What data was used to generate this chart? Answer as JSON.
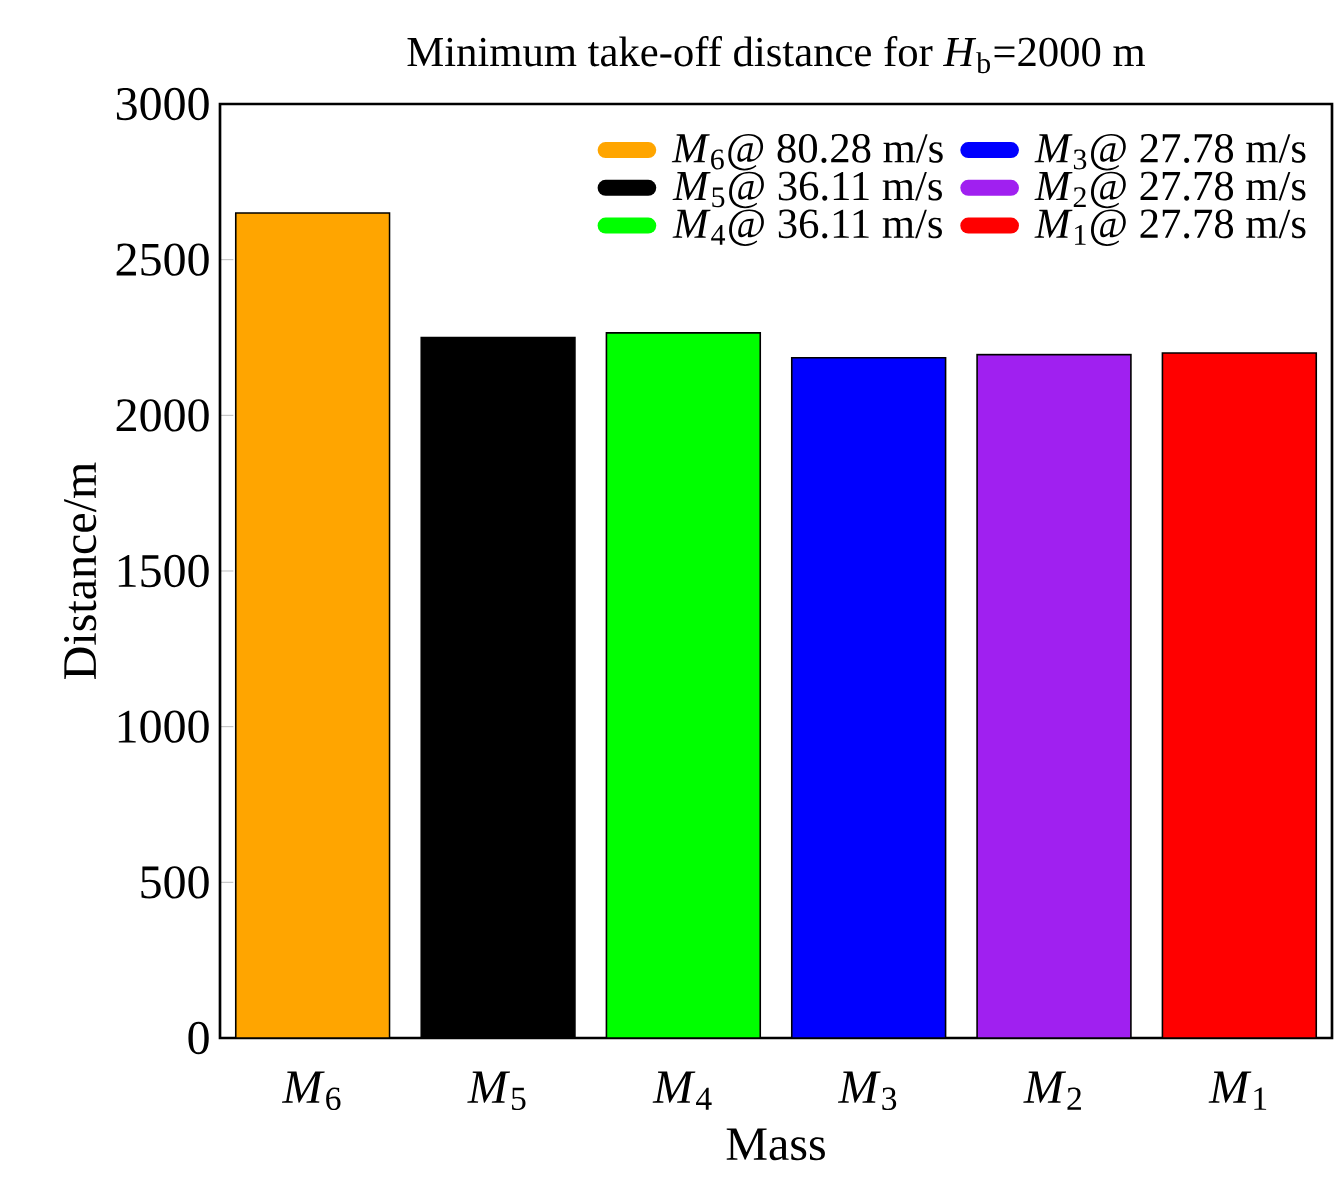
{
  "chart_data": {
    "type": "bar",
    "title": "Minimum take-off distance for *H*$_{b}$=2000 m",
    "xlabel": "Mass",
    "ylabel": "Distance/m",
    "categories": [
      "*M*$_{6}$",
      "*M*$_{5}$",
      "*M*$_{4}$",
      "*M*$_{3}$",
      "*M*$_{2}$",
      "*M*$_{1}$"
    ],
    "series": [
      {
        "name": "*M*$_{6}$@ 80.28 m/s",
        "color": "#ffa500",
        "values": [
          2650,
          null,
          null,
          null,
          null,
          null
        ]
      },
      {
        "name": "*M*$_{5}$@ 36.11 m/s",
        "color": "#000000",
        "values": [
          null,
          2250,
          null,
          null,
          null,
          null
        ]
      },
      {
        "name": "*M*$_{4}$@ 36.11 m/s",
        "color": "#00ff00",
        "values": [
          null,
          null,
          2265,
          null,
          null,
          null
        ]
      },
      {
        "name": "*M*$_{3}$@ 27.78 m/s",
        "color": "#0000ff",
        "values": [
          null,
          null,
          null,
          2185,
          null,
          null
        ]
      },
      {
        "name": "*M*$_{2}$@ 27.78 m/s",
        "color": "#a020f0",
        "values": [
          null,
          null,
          null,
          null,
          2195,
          null
        ]
      },
      {
        "name": "*M*$_{1}$@ 27.78 m/s",
        "color": "#ff0000",
        "values": [
          null,
          null,
          null,
          null,
          null,
          2200
        ]
      }
    ],
    "ylim": [
      0,
      3000
    ],
    "yticks": [
      0,
      500,
      1000,
      1500,
      2000,
      2500,
      3000
    ],
    "legend": "top right"
  }
}
